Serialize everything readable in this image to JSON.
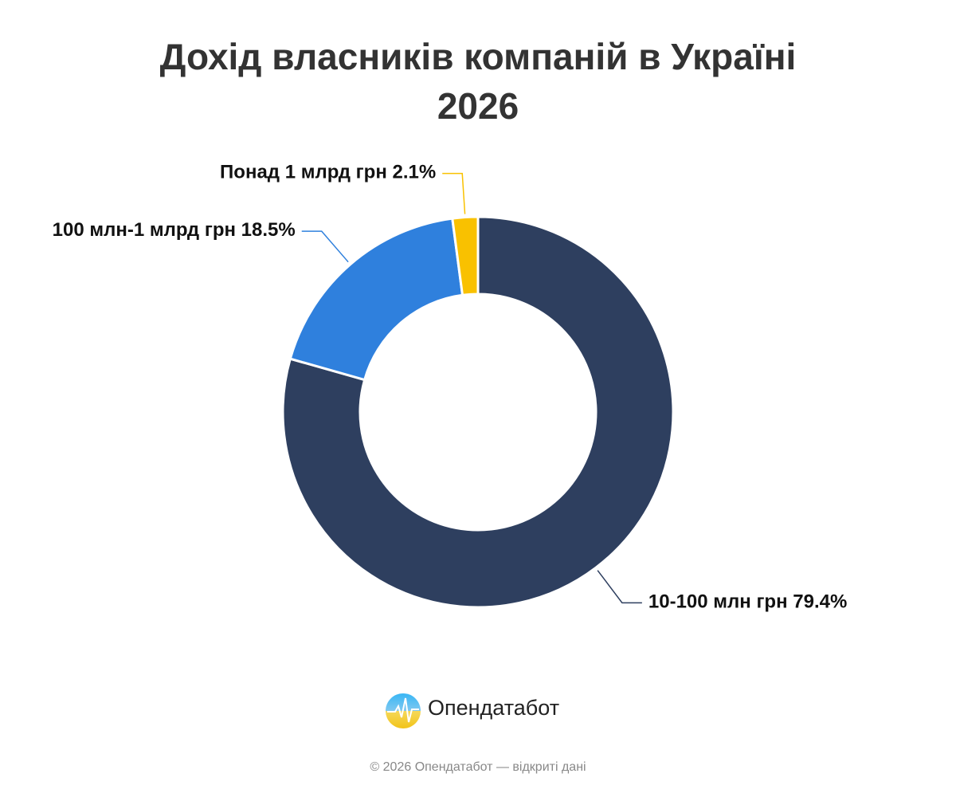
{
  "chart_data": {
    "type": "pie",
    "title": "Дохід власників компаній в Україні 2026",
    "categories": [
      "10-100 млн грн",
      "100 млн-1 млрд грн",
      "Понад 1 млрд грн"
    ],
    "values": [
      79.4,
      18.5,
      2.1
    ],
    "value_labels": [
      "79.4%",
      "18.5%",
      "2.1%"
    ],
    "colors": [
      "#2e3f5f",
      "#2f80dd",
      "#f9c100"
    ]
  },
  "footer": {
    "brand": "Опендатабот",
    "copyright": "© 2026 Опендатабот — відкриті дані"
  }
}
